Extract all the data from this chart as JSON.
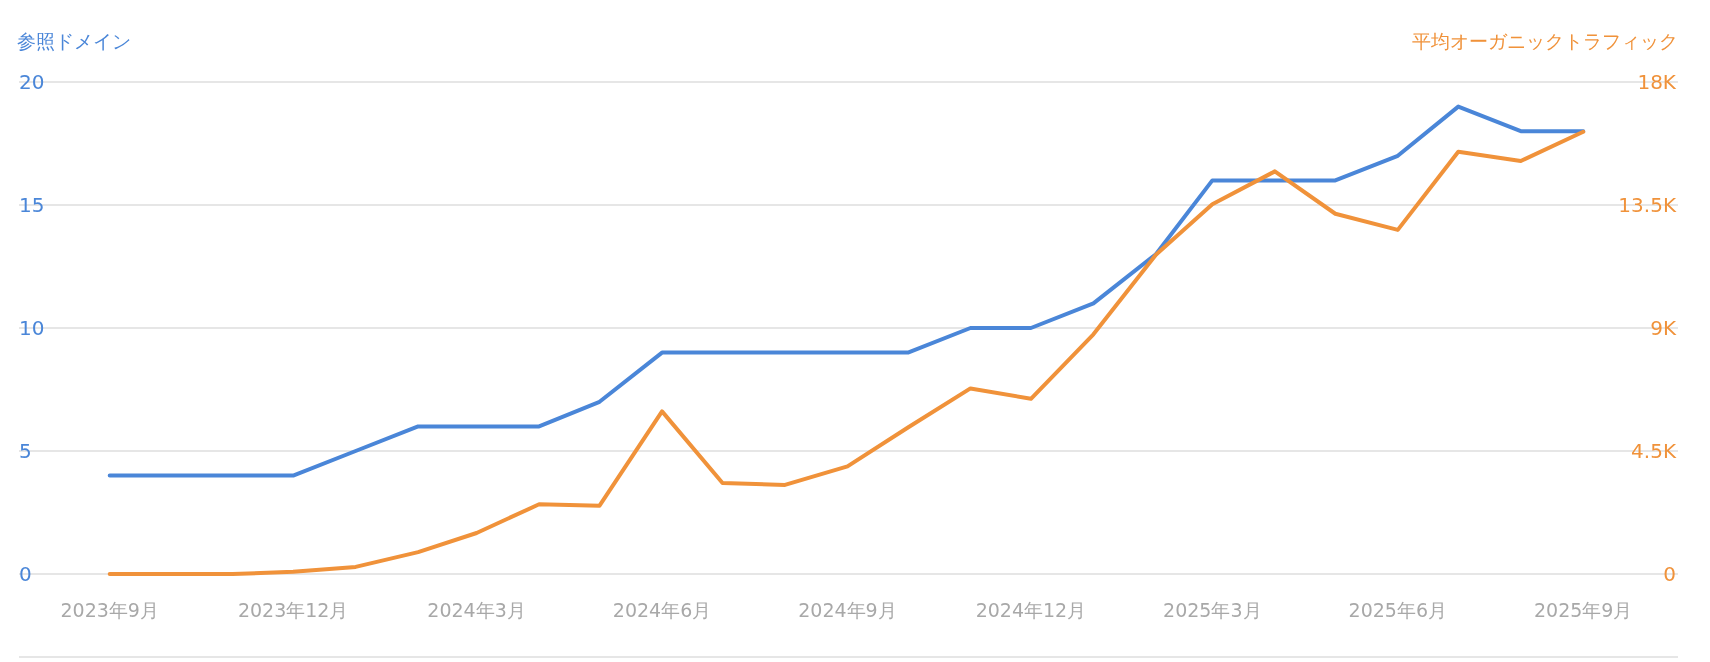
{
  "chart_data": {
    "type": "line",
    "ylabel": "参照ドメイン",
    "y2label": "平均オーガニックトラフィック",
    "x": [
      "2023-09",
      "2023-10",
      "2023-11",
      "2023-12",
      "2024-01",
      "2024-02",
      "2024-03",
      "2024-04",
      "2024-05",
      "2024-06",
      "2024-07",
      "2024-08",
      "2024-09",
      "2024-10",
      "2024-11",
      "2024-12",
      "2025-01",
      "2025-02",
      "2025-03",
      "2025-04",
      "2025-05",
      "2025-06",
      "2025-07",
      "2025-08",
      "2025-09"
    ],
    "xlim": [
      "2023-07-18",
      "2025-10-18"
    ],
    "xticks": [
      {
        "value": "2023-09",
        "label": "2023年9月"
      },
      {
        "value": "2023-12",
        "label": "2023年12月"
      },
      {
        "value": "2024-03",
        "label": "2024年3月"
      },
      {
        "value": "2024-06",
        "label": "2024年6月"
      },
      {
        "value": "2024-09",
        "label": "2024年9月"
      },
      {
        "value": "2024-12",
        "label": "2024年12月"
      },
      {
        "value": "2025-03",
        "label": "2025年3月"
      },
      {
        "value": "2025-06",
        "label": "2025年6月"
      },
      {
        "value": "2025-09",
        "label": "2025年9月"
      }
    ],
    "ylim": [
      0,
      20
    ],
    "yticks": [
      0,
      5,
      10,
      15,
      20
    ],
    "y2lim": [
      0,
      18000
    ],
    "y2ticks": [
      {
        "value": 0,
        "label": "0"
      },
      {
        "value": 4500,
        "label": "4.5K"
      },
      {
        "value": 9000,
        "label": "9K"
      },
      {
        "value": 13500,
        "label": "13.5K"
      },
      {
        "value": 18000,
        "label": "18K"
      }
    ],
    "grid": "y",
    "series": [
      {
        "color": "#4a86d8",
        "values": [
          4,
          4,
          4,
          4,
          5,
          6,
          6,
          6,
          7,
          9,
          9,
          9,
          9,
          9,
          10,
          10,
          11,
          13,
          16,
          16,
          16,
          17,
          19,
          18,
          18
        ]
      },
      {
        "color": "#f0923a",
        "axis": "y2",
        "values": [
          0,
          0,
          0,
          80,
          260,
          800,
          1500,
          2550,
          2500,
          5950,
          3330,
          3260,
          3940,
          5360,
          6790,
          6410,
          8770,
          11680,
          13530,
          14730,
          13180,
          12590,
          15450,
          15110,
          16180
        ]
      }
    ]
  }
}
